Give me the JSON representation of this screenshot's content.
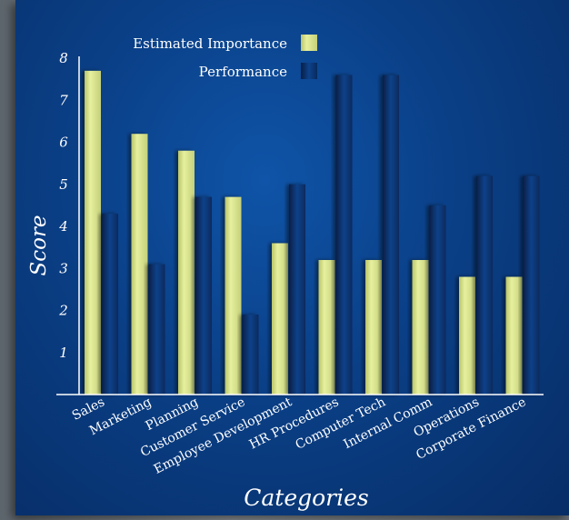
{
  "chart_data": {
    "type": "bar",
    "title": "",
    "xlabel": "Categories",
    "ylabel": "Score",
    "ylim": [
      0,
      8
    ],
    "yticks": [
      1,
      2,
      3,
      4,
      5,
      6,
      7,
      8
    ],
    "grid": false,
    "legend_position": "top-center",
    "categories": [
      "Sales",
      "Marketing",
      "Planning",
      "Customer Service",
      "Employee Development",
      "HR Procedures",
      "Computer Tech",
      "Internal Comm",
      "Operations",
      "Corporate Finance"
    ],
    "series": [
      {
        "name": "Estimated Importance",
        "color": "#d9e58a",
        "values": [
          7.7,
          6.2,
          5.8,
          4.7,
          3.6,
          3.2,
          3.2,
          3.2,
          2.8,
          2.8
        ]
      },
      {
        "name": "Performance",
        "color": "#0c3d80",
        "values": [
          4.3,
          3.1,
          4.7,
          1.9,
          5.0,
          7.6,
          7.6,
          4.5,
          5.2,
          5.2
        ]
      }
    ]
  }
}
